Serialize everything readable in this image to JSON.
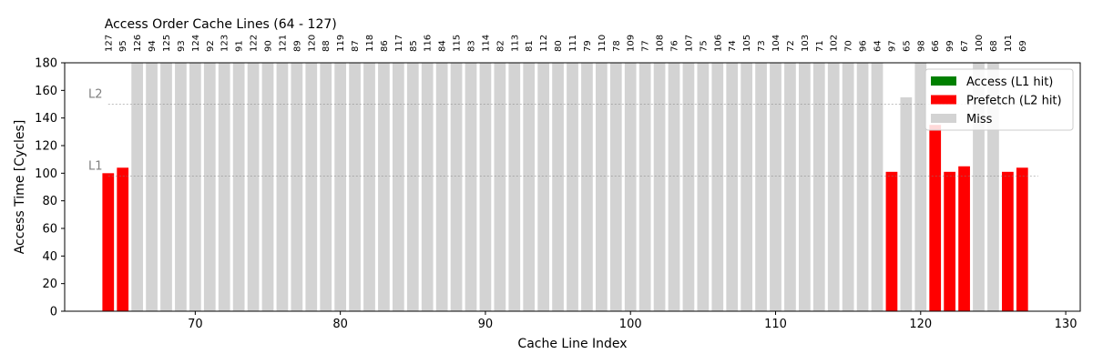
{
  "chart_data": {
    "type": "bar",
    "top_title": "Access Order Cache Lines (64 - 127)",
    "xlabel": "Cache Line Index",
    "ylabel": "Access Time [Cycles]",
    "xlim": [
      61,
      131
    ],
    "ylim": [
      0,
      180
    ],
    "x_ticks": [
      70,
      80,
      90,
      100,
      110,
      120,
      130
    ],
    "y_ticks": [
      0,
      20,
      40,
      60,
      80,
      100,
      120,
      140,
      160,
      180
    ],
    "grid": false,
    "legend_placement": "top-right",
    "legend": [
      {
        "label": "Access (L1 hit)",
        "color": "#008000",
        "key": "access"
      },
      {
        "label": "Prefetch (L2 hit)",
        "color": "#ff0000",
        "key": "prefetch"
      },
      {
        "label": "Miss",
        "color": "#d3d3d3",
        "key": "miss"
      }
    ],
    "reference_lines": [
      {
        "label": "L2",
        "value": 150
      },
      {
        "label": "L1",
        "value": 98
      }
    ],
    "access_order": [
      127,
      95,
      126,
      94,
      125,
      93,
      124,
      92,
      123,
      91,
      122,
      90,
      121,
      89,
      120,
      88,
      119,
      87,
      118,
      86,
      117,
      85,
      116,
      84,
      115,
      83,
      114,
      82,
      113,
      81,
      112,
      80,
      111,
      79,
      110,
      78,
      109,
      77,
      108,
      76,
      107,
      75,
      106,
      74,
      105,
      73,
      104,
      72,
      103,
      71,
      102,
      70,
      96,
      64,
      97,
      65,
      98,
      66,
      99,
      67,
      100,
      68,
      101,
      69
    ],
    "bars": [
      {
        "x": 64,
        "value": 100,
        "status": "prefetch"
      },
      {
        "x": 65,
        "value": 104,
        "status": "prefetch"
      },
      {
        "x": 66,
        "value": 180,
        "status": "miss"
      },
      {
        "x": 67,
        "value": 180,
        "status": "miss"
      },
      {
        "x": 68,
        "value": 180,
        "status": "miss"
      },
      {
        "x": 69,
        "value": 180,
        "status": "miss"
      },
      {
        "x": 70,
        "value": 180,
        "status": "miss"
      },
      {
        "x": 71,
        "value": 180,
        "status": "miss"
      },
      {
        "x": 72,
        "value": 180,
        "status": "miss"
      },
      {
        "x": 73,
        "value": 180,
        "status": "miss"
      },
      {
        "x": 74,
        "value": 180,
        "status": "miss"
      },
      {
        "x": 75,
        "value": 180,
        "status": "miss"
      },
      {
        "x": 76,
        "value": 180,
        "status": "miss"
      },
      {
        "x": 77,
        "value": 180,
        "status": "miss"
      },
      {
        "x": 78,
        "value": 180,
        "status": "miss"
      },
      {
        "x": 79,
        "value": 180,
        "status": "miss"
      },
      {
        "x": 80,
        "value": 180,
        "status": "miss"
      },
      {
        "x": 81,
        "value": 180,
        "status": "miss"
      },
      {
        "x": 82,
        "value": 180,
        "status": "miss"
      },
      {
        "x": 83,
        "value": 180,
        "status": "miss"
      },
      {
        "x": 84,
        "value": 180,
        "status": "miss"
      },
      {
        "x": 85,
        "value": 180,
        "status": "miss"
      },
      {
        "x": 86,
        "value": 180,
        "status": "miss"
      },
      {
        "x": 87,
        "value": 180,
        "status": "miss"
      },
      {
        "x": 88,
        "value": 180,
        "status": "miss"
      },
      {
        "x": 89,
        "value": 180,
        "status": "miss"
      },
      {
        "x": 90,
        "value": 180,
        "status": "miss"
      },
      {
        "x": 91,
        "value": 180,
        "status": "miss"
      },
      {
        "x": 92,
        "value": 180,
        "status": "miss"
      },
      {
        "x": 93,
        "value": 180,
        "status": "miss"
      },
      {
        "x": 94,
        "value": 180,
        "status": "miss"
      },
      {
        "x": 95,
        "value": 180,
        "status": "miss"
      },
      {
        "x": 96,
        "value": 180,
        "status": "miss"
      },
      {
        "x": 97,
        "value": 180,
        "status": "miss"
      },
      {
        "x": 98,
        "value": 180,
        "status": "miss"
      },
      {
        "x": 99,
        "value": 180,
        "status": "miss"
      },
      {
        "x": 100,
        "value": 180,
        "status": "miss"
      },
      {
        "x": 101,
        "value": 180,
        "status": "miss"
      },
      {
        "x": 102,
        "value": 180,
        "status": "miss"
      },
      {
        "x": 103,
        "value": 180,
        "status": "miss"
      },
      {
        "x": 104,
        "value": 180,
        "status": "miss"
      },
      {
        "x": 105,
        "value": 180,
        "status": "miss"
      },
      {
        "x": 106,
        "value": 180,
        "status": "miss"
      },
      {
        "x": 107,
        "value": 180,
        "status": "miss"
      },
      {
        "x": 108,
        "value": 180,
        "status": "miss"
      },
      {
        "x": 109,
        "value": 180,
        "status": "miss"
      },
      {
        "x": 110,
        "value": 180,
        "status": "miss"
      },
      {
        "x": 111,
        "value": 180,
        "status": "miss"
      },
      {
        "x": 112,
        "value": 180,
        "status": "miss"
      },
      {
        "x": 113,
        "value": 180,
        "status": "miss"
      },
      {
        "x": 114,
        "value": 180,
        "status": "miss"
      },
      {
        "x": 115,
        "value": 180,
        "status": "miss"
      },
      {
        "x": 116,
        "value": 180,
        "status": "miss"
      },
      {
        "x": 117,
        "value": 180,
        "status": "miss"
      },
      {
        "x": 118,
        "value": 101,
        "status": "prefetch"
      },
      {
        "x": 119,
        "value": 155,
        "status": "miss"
      },
      {
        "x": 120,
        "value": 180,
        "status": "miss"
      },
      {
        "x": 121,
        "value": 135,
        "status": "prefetch"
      },
      {
        "x": 122,
        "value": 101,
        "status": "prefetch"
      },
      {
        "x": 123,
        "value": 105,
        "status": "prefetch"
      },
      {
        "x": 124,
        "value": 180,
        "status": "miss"
      },
      {
        "x": 125,
        "value": 180,
        "status": "miss"
      },
      {
        "x": 126,
        "value": 101,
        "status": "prefetch"
      },
      {
        "x": 127,
        "value": 104,
        "status": "prefetch"
      }
    ]
  }
}
